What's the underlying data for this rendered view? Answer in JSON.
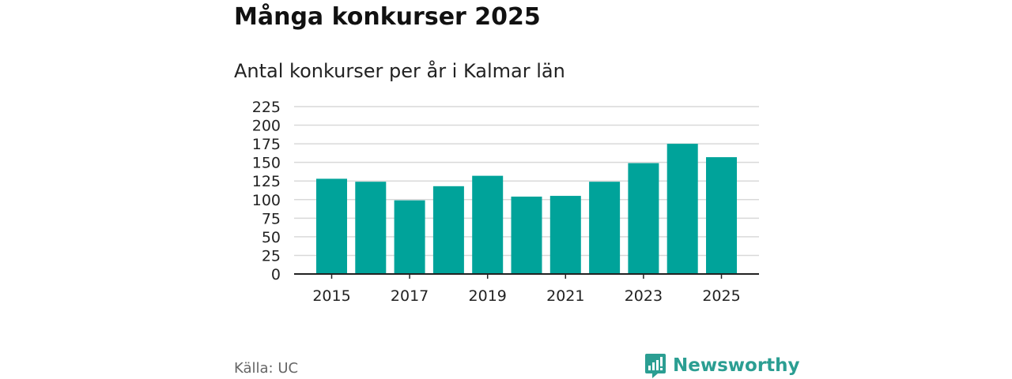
{
  "colors": {
    "bar": "#00a39a",
    "grid": "#d9d9d9",
    "axis": "#222222",
    "brand": "#2b9e92"
  },
  "source": "Källa: UC",
  "brand": {
    "name": "Newsworthy",
    "icon": "newsworthy-logo-icon"
  },
  "chart_data": {
    "type": "bar",
    "title": "Många konkurser 2025",
    "subtitle": "Antal konkurser per år i Kalmar län",
    "xlabel": "",
    "ylabel": "",
    "categories": [
      "2015",
      "2016",
      "2017",
      "2018",
      "2019",
      "2020",
      "2021",
      "2022",
      "2023",
      "2024",
      "2025"
    ],
    "values": [
      128,
      124,
      99,
      118,
      132,
      104,
      105,
      124,
      149,
      175,
      157
    ],
    "x_tick_labels": [
      "2015",
      "2017",
      "2019",
      "2021",
      "2023",
      "2025"
    ],
    "y_ticks": [
      0,
      25,
      50,
      75,
      100,
      125,
      150,
      175,
      200,
      225
    ],
    "y_tick_labels": [
      "0",
      "25",
      "50",
      "75",
      "100",
      "125",
      "150",
      "175",
      "200",
      "225"
    ],
    "ylim": [
      0,
      225
    ],
    "grid": true,
    "legend": "none"
  }
}
